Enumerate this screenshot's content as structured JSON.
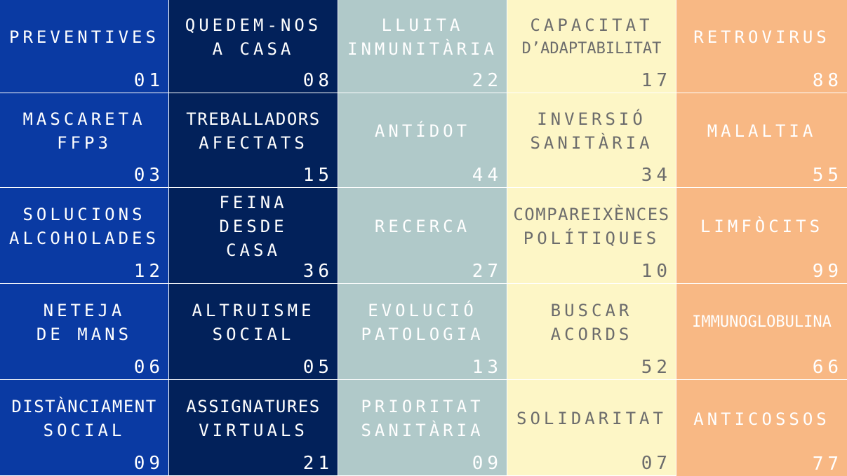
{
  "colors": {
    "column_1": "#0a3aa3",
    "column_2": "#02215a",
    "column_3": "#b0c9c9",
    "column_4": "#fdf6c6",
    "column_5": "#f8b884",
    "text_light": "#ffffff",
    "text_dark": "#6c6c6c"
  },
  "rows": [
    [
      {
        "lines": [
          "PREVENTIVES"
        ],
        "number": "01"
      },
      {
        "lines": [
          "QUEDEM-NOS",
          "A CASA"
        ],
        "number": "08"
      },
      {
        "lines": [
          "LLUITA",
          "INMUNITÀRIA"
        ],
        "number": "22"
      },
      {
        "lines": [
          "CAPACITAT",
          "D’ADAPTABILITAT"
        ],
        "number": "17"
      },
      {
        "lines": [
          "RETROVIRUS"
        ],
        "number": "88"
      }
    ],
    [
      {
        "lines": [
          "MASCARETA",
          "FFP3"
        ],
        "number": "03"
      },
      {
        "lines": [
          "TREBALLADORS",
          "AFECTATS"
        ],
        "number": "15"
      },
      {
        "lines": [
          "ANTÍDOT"
        ],
        "number": "44"
      },
      {
        "lines": [
          "INVERSIÓ",
          "SANITÀRIA"
        ],
        "number": "34"
      },
      {
        "lines": [
          "MALALTIA"
        ],
        "number": "55"
      }
    ],
    [
      {
        "lines": [
          "SOLUCIONS",
          "ALCOHOLADES"
        ],
        "number": "12"
      },
      {
        "lines": [
          "FEINA",
          "DESDE",
          "CASA"
        ],
        "number": "36"
      },
      {
        "lines": [
          "RECERCA"
        ],
        "number": "27"
      },
      {
        "lines": [
          "COMPAREIXÈNCES",
          "POLÍTIQUES"
        ],
        "number": "10"
      },
      {
        "lines": [
          "LIMFÒCITS"
        ],
        "number": "99"
      }
    ],
    [
      {
        "lines": [
          "NETEJA",
          "DE MANS"
        ],
        "number": "06"
      },
      {
        "lines": [
          "ALTRUISME",
          "SOCIAL"
        ],
        "number": "05"
      },
      {
        "lines": [
          "EVOLUCIÓ",
          "PATOLOGIA"
        ],
        "number": "13"
      },
      {
        "lines": [
          "BUSCAR",
          "ACORDS"
        ],
        "number": "52"
      },
      {
        "lines": [
          "IMMUNOGLOBULINA"
        ],
        "number": "66"
      }
    ],
    [
      {
        "lines": [
          "DISTÀNCIAMENT",
          "SOCIAL"
        ],
        "number": "09"
      },
      {
        "lines": [
          "ASSIGNATURES",
          "VIRTUALS"
        ],
        "number": "21"
      },
      {
        "lines": [
          "PRIORITAT",
          "SANITÀRIA"
        ],
        "number": "09"
      },
      {
        "lines": [
          "SOLIDARITAT"
        ],
        "number": "07"
      },
      {
        "lines": [
          "ANTICOSSOS"
        ],
        "number": "77"
      }
    ]
  ]
}
